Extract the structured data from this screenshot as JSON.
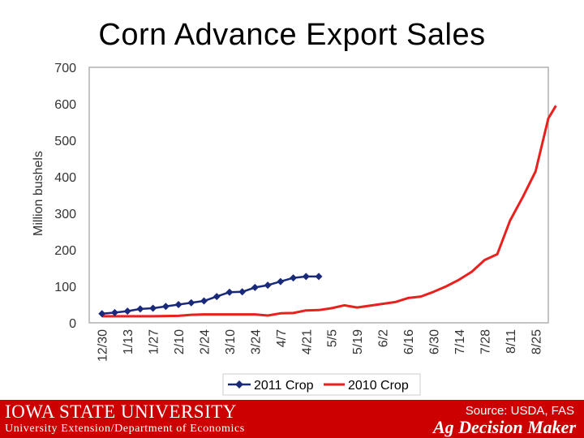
{
  "title": "Corn Advance Export Sales",
  "source": "Source: USDA, FAS",
  "footer": {
    "university": "IOWA STATE UNIVERSITY",
    "department": "University Extension/Department of Economics",
    "brand": "Ag Decision Maker"
  },
  "colors": {
    "series_2011": "#1a2a7a",
    "series_2010": "#e8211f",
    "footer": "#cc0000",
    "grid_border": "#b0b0b0"
  },
  "chart_data": {
    "type": "line",
    "title": "Corn Advance Export Sales",
    "ylabel": "Million bushels",
    "xlabel": "",
    "ylim": [
      0,
      700
    ],
    "yticks": [
      0,
      100,
      200,
      300,
      400,
      500,
      600,
      700
    ],
    "categories": [
      "12/30",
      "1/13",
      "1/27",
      "2/10",
      "2/24",
      "3/10",
      "3/24",
      "4/7",
      "4/21",
      "5/5",
      "5/19",
      "6/2",
      "6/16",
      "6/30",
      "7/14",
      "7/28",
      "8/11",
      "8/25"
    ],
    "legend_position": "bottom",
    "series": [
      {
        "name": "2011 Crop",
        "marker": "diamond",
        "x": [
          0,
          0.5,
          1,
          1.5,
          2,
          2.5,
          3,
          3.5,
          4,
          4.5,
          5,
          5.5,
          6,
          6.5,
          7,
          7.5,
          8,
          8.5
        ],
        "values": [
          25,
          28,
          32,
          38,
          40,
          45,
          50,
          55,
          60,
          72,
          84,
          85,
          97,
          103,
          113,
          123,
          127,
          127
        ]
      },
      {
        "name": "2010 Crop",
        "marker": "none",
        "x": [
          0,
          1,
          2,
          3,
          3.5,
          4,
          5,
          5.5,
          6,
          6.5,
          7,
          7.5,
          8,
          8.5,
          9,
          9.5,
          10,
          10.5,
          11,
          11.5,
          12,
          12.5,
          13,
          13.5,
          14,
          14.5,
          15,
          15.5,
          16,
          16.5,
          17,
          17.5,
          17.8
        ],
        "values": [
          18,
          18,
          18,
          19,
          22,
          23,
          23,
          23,
          23,
          20,
          26,
          27,
          34,
          35,
          40,
          48,
          42,
          47,
          52,
          57,
          68,
          72,
          85,
          100,
          118,
          140,
          172,
          188,
          280,
          345,
          415,
          560,
          595
        ]
      }
    ]
  }
}
